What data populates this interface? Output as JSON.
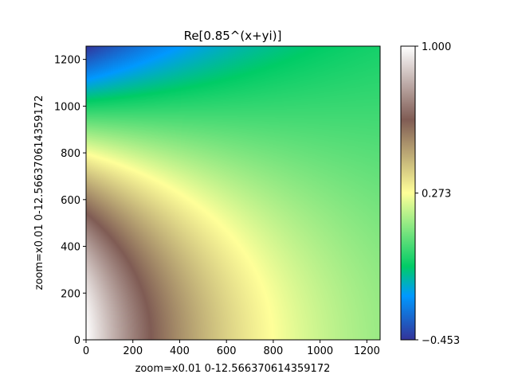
{
  "chart_data": {
    "type": "heatmap",
    "title": "Re[0.85^(x+yi)]",
    "xlabel": "zoom=x0.01  0-12.566370614359172",
    "ylabel": "zoom=x0.01  0-12.566370614359172",
    "x_range": [
      0,
      1256.6370614359173
    ],
    "y_range": [
      0,
      1256.6370614359173
    ],
    "x_ticks": [
      0,
      200,
      400,
      600,
      800,
      1000,
      1200
    ],
    "y_ticks": [
      0,
      200,
      400,
      600,
      800,
      1000,
      1200
    ],
    "function": "Re[0.85^(x+yi)]",
    "zoom": 0.01,
    "colormap": "terrain_r",
    "colorbar": {
      "min": -0.453,
      "max": 1.0,
      "ticks": [
        1.0,
        0.273,
        -0.453
      ],
      "tick_labels": [
        "1.000",
        "0.273",
        "−0.453"
      ]
    },
    "grid": false
  }
}
